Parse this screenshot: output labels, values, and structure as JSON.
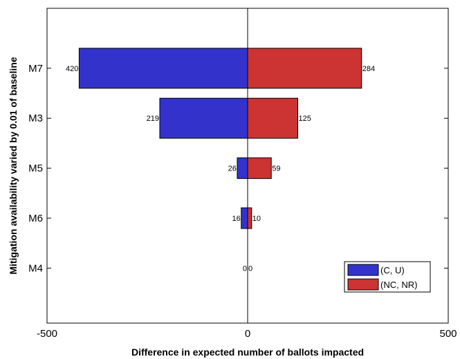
{
  "chart_data": {
    "type": "bar",
    "orientation": "horizontal",
    "layout": "diverging",
    "title": "",
    "xlabel": "Difference in expected number of ballots impacted",
    "ylabel": "Mitigation availability varied by 0.01 of baseline",
    "xlim": [
      -500,
      500
    ],
    "x_ticks": [
      -500,
      0,
      500
    ],
    "x_tick_labels": [
      "-500",
      "0",
      "500"
    ],
    "categories": [
      "M7",
      "M3",
      "M5",
      "M6",
      "M4"
    ],
    "series": [
      {
        "name": "(C, U)",
        "color": "#3333cc",
        "values": [
          -420,
          -219,
          -26,
          -16,
          0
        ],
        "labels": [
          "420",
          "219",
          "26",
          "16",
          "0"
        ]
      },
      {
        "name": "(NC, NR)",
        "color": "#cc3333",
        "values": [
          284,
          125,
          59,
          10,
          0
        ],
        "labels": [
          "284",
          "125",
          "59",
          "10",
          "0"
        ]
      }
    ],
    "grid": false,
    "legend_position": "bottom-right"
  }
}
